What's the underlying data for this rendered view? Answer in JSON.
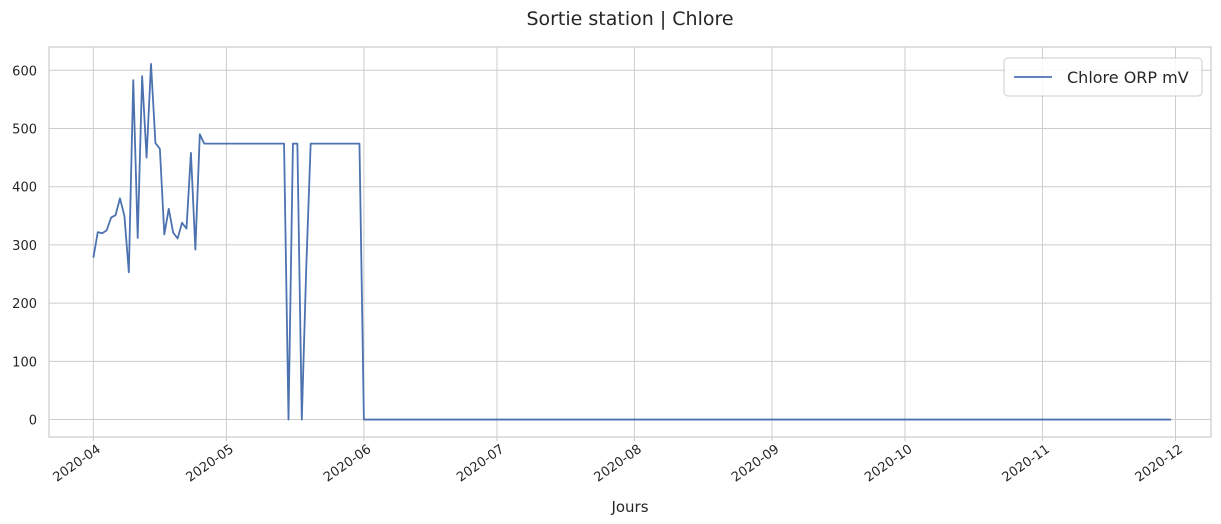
{
  "chart_data": {
    "type": "line",
    "title": "Sortie station | Chlore",
    "xlabel": "Jours",
    "ylabel": "",
    "x_axis": "date",
    "xlim": [
      "2020-03-22",
      "2020-12-09"
    ],
    "ylim": [
      -30,
      640
    ],
    "x_ticks": [
      "2020-04-01",
      "2020-05-01",
      "2020-06-01",
      "2020-07-01",
      "2020-08-01",
      "2020-09-01",
      "2020-10-01",
      "2020-11-01",
      "2020-12-01"
    ],
    "x_tick_labels": [
      "2020-04",
      "2020-05",
      "2020-06",
      "2020-07",
      "2020-08",
      "2020-09",
      "2020-10",
      "2020-11",
      "2020-12"
    ],
    "y_ticks": [
      0,
      100,
      200,
      300,
      400,
      500,
      600
    ],
    "grid": true,
    "legend_position": "top-right",
    "series": [
      {
        "name": "Chlore ORP mV",
        "color": "#4c72b0",
        "x": [
          "2020-04-01",
          "2020-04-02",
          "2020-04-03",
          "2020-04-04",
          "2020-04-05",
          "2020-04-06",
          "2020-04-07",
          "2020-04-08",
          "2020-04-09",
          "2020-04-10",
          "2020-04-11",
          "2020-04-12",
          "2020-04-13",
          "2020-04-14",
          "2020-04-15",
          "2020-04-16",
          "2020-04-17",
          "2020-04-18",
          "2020-04-19",
          "2020-04-20",
          "2020-04-21",
          "2020-04-22",
          "2020-04-23",
          "2020-04-24",
          "2020-04-25",
          "2020-04-26",
          "2020-04-27",
          "2020-04-30",
          "2020-05-05",
          "2020-05-10",
          "2020-05-14",
          "2020-05-15",
          "2020-05-16",
          "2020-05-17",
          "2020-05-18",
          "2020-05-19",
          "2020-05-20",
          "2020-05-25",
          "2020-05-31",
          "2020-06-01",
          "2020-07-01",
          "2020-08-01",
          "2020-09-01",
          "2020-10-01",
          "2020-11-01",
          "2020-11-30"
        ],
        "values": [
          278,
          322,
          320,
          325,
          347,
          351,
          380,
          350,
          253,
          583,
          312,
          590,
          450,
          611,
          475,
          465,
          318,
          362,
          321,
          311,
          338,
          328,
          458,
          292,
          490,
          474,
          474,
          474,
          474,
          474,
          474,
          0,
          474,
          474,
          0,
          260,
          474,
          474,
          474,
          0,
          0,
          0,
          0,
          0,
          0,
          0
        ]
      }
    ]
  }
}
